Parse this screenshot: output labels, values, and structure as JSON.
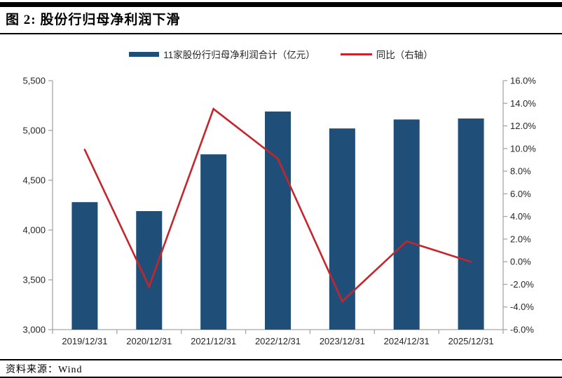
{
  "figure": {
    "title": "图 2:  股份行归母净利润下滑",
    "source_label": "资料来源：Wind"
  },
  "legend": {
    "bar_label": "11家股份行归母净利润合计（亿元）",
    "line_label": "同比（右轴）"
  },
  "colors": {
    "bar": "#1F4E79",
    "line": "#C5262C",
    "axis_line": "#A6A6A6",
    "axis_text": "#262626"
  },
  "chart_data": {
    "type": "bar",
    "subtype": "bar-line-combo",
    "title": "股份行归母净利润下滑",
    "categories": [
      "2019/12/31",
      "2020/12/31",
      "2021/12/31",
      "2022/12/31",
      "2023/12/31",
      "2024/12/31",
      "2025/12/31"
    ],
    "series": [
      {
        "name": "11家股份行归母净利润合计（亿元）",
        "type": "bar",
        "axis": "left",
        "values": [
          4280,
          4190,
          4760,
          5190,
          5020,
          5110,
          5120
        ]
      },
      {
        "name": "同比（右轴）",
        "type": "line",
        "axis": "right",
        "values": [
          9.9,
          -2.2,
          13.5,
          9.1,
          -3.5,
          1.8,
          0.0
        ]
      }
    ],
    "y_left": {
      "min": 3000,
      "max": 5500,
      "tick_step": 500,
      "tick_labels": [
        "3,000",
        "3,500",
        "4,000",
        "4,500",
        "5,000",
        "5,500"
      ]
    },
    "y_right": {
      "min": -6,
      "max": 16,
      "tick_step": 2,
      "tick_labels": [
        "-6.0%",
        "-4.0%",
        "-2.0%",
        "0.0%",
        "2.0%",
        "4.0%",
        "6.0%",
        "8.0%",
        "10.0%",
        "12.0%",
        "14.0%",
        "16.0%"
      ]
    },
    "grid": false,
    "legend_position": "top"
  }
}
